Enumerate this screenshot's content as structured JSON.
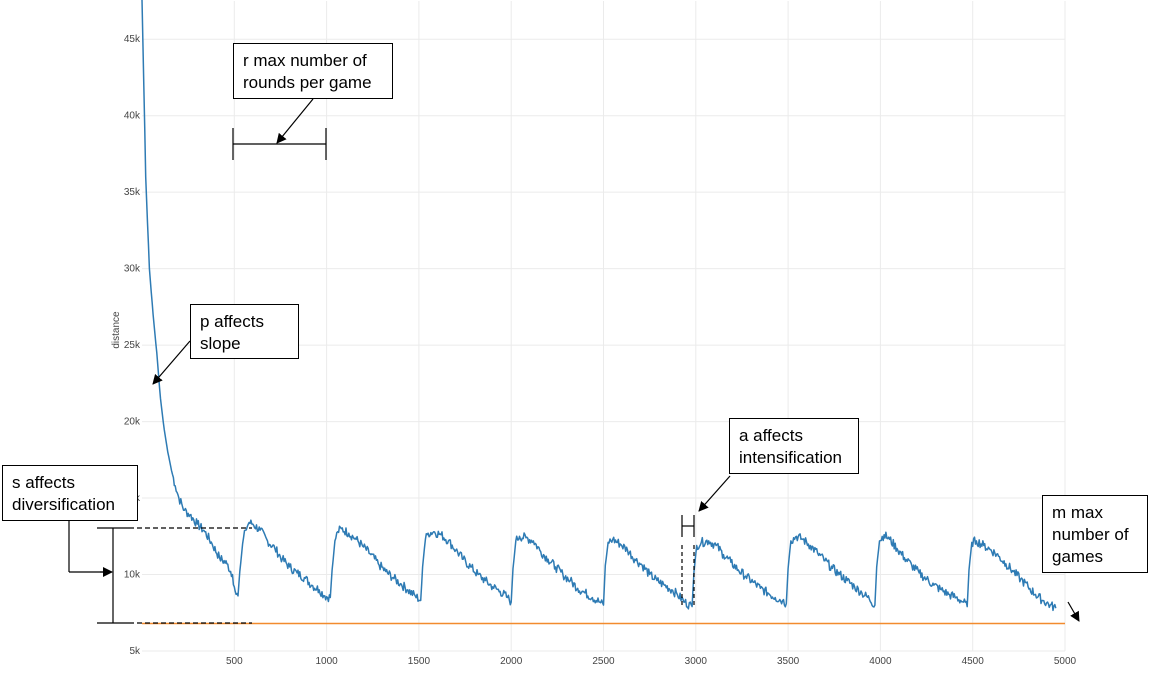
{
  "chart_data": {
    "type": "line",
    "title": "",
    "xlabel": "",
    "ylabel": "distance",
    "xlim": [
      0,
      5000
    ],
    "ylim": [
      5000,
      47500
    ],
    "grid": true,
    "x_ticks": [
      {
        "value": 500,
        "label": "500"
      },
      {
        "value": 1000,
        "label": "1000"
      },
      {
        "value": 1500,
        "label": "1500"
      },
      {
        "value": 2000,
        "label": "2000"
      },
      {
        "value": 2500,
        "label": "2500"
      },
      {
        "value": 3000,
        "label": "3000"
      },
      {
        "value": 3500,
        "label": "3500"
      },
      {
        "value": 4000,
        "label": "4000"
      },
      {
        "value": 4500,
        "label": "4500"
      },
      {
        "value": 5000,
        "label": "5000"
      }
    ],
    "y_ticks": [
      {
        "value": 5000,
        "label": "5k"
      },
      {
        "value": 10000,
        "label": "10k"
      },
      {
        "value": 15000,
        "label": "15k"
      },
      {
        "value": 20000,
        "label": "20k"
      },
      {
        "value": 25000,
        "label": "25k"
      },
      {
        "value": 30000,
        "label": "30k"
      },
      {
        "value": 35000,
        "label": "35k"
      },
      {
        "value": 40000,
        "label": "40k"
      },
      {
        "value": 45000,
        "label": "45k"
      }
    ],
    "series": [
      {
        "color": "#2e7bb4",
        "points": [
          [
            0,
            47600
          ],
          [
            10,
            42000
          ],
          [
            20,
            36000
          ],
          [
            40,
            30000
          ],
          [
            60,
            27000
          ],
          [
            80,
            24500
          ],
          [
            100,
            21500
          ],
          [
            120,
            19500
          ],
          [
            140,
            18000
          ],
          [
            160,
            16800
          ],
          [
            180,
            15800
          ],
          [
            200,
            15000
          ],
          [
            230,
            14200
          ],
          [
            260,
            13900
          ],
          [
            300,
            13300
          ],
          [
            340,
            12800
          ],
          [
            380,
            12000
          ],
          [
            420,
            11100
          ],
          [
            460,
            10700
          ],
          [
            490,
            10000
          ],
          [
            500,
            9200
          ],
          [
            510,
            8700
          ],
          [
            520,
            8600
          ],
          [
            530,
            10200
          ],
          [
            545,
            12000
          ],
          [
            560,
            12900
          ],
          [
            580,
            13400
          ],
          [
            600,
            13300
          ],
          [
            640,
            12900
          ],
          [
            680,
            12200
          ],
          [
            720,
            11700
          ],
          [
            760,
            11000
          ],
          [
            800,
            10500
          ],
          [
            840,
            10100
          ],
          [
            880,
            9800
          ],
          [
            920,
            9300
          ],
          [
            960,
            9000
          ],
          [
            990,
            8600
          ],
          [
            1020,
            8500
          ],
          [
            1030,
            10300
          ],
          [
            1045,
            12200
          ],
          [
            1060,
            12800
          ],
          [
            1080,
            13000
          ],
          [
            1120,
            12700
          ],
          [
            1160,
            12300
          ],
          [
            1200,
            11800
          ],
          [
            1240,
            11300
          ],
          [
            1280,
            10700
          ],
          [
            1320,
            10200
          ],
          [
            1360,
            9800
          ],
          [
            1400,
            9400
          ],
          [
            1440,
            9000
          ],
          [
            1480,
            8600
          ],
          [
            1510,
            8300
          ],
          [
            1520,
            10500
          ],
          [
            1535,
            12300
          ],
          [
            1550,
            12700
          ],
          [
            1580,
            12800
          ],
          [
            1620,
            12600
          ],
          [
            1660,
            12200
          ],
          [
            1700,
            11600
          ],
          [
            1740,
            11000
          ],
          [
            1780,
            10500
          ],
          [
            1820,
            10000
          ],
          [
            1860,
            9600
          ],
          [
            1900,
            9200
          ],
          [
            1940,
            8900
          ],
          [
            1980,
            8500
          ],
          [
            2000,
            8200
          ],
          [
            2010,
            10400
          ],
          [
            2025,
            12200
          ],
          [
            2045,
            12500
          ],
          [
            2080,
            12400
          ],
          [
            2120,
            12200
          ],
          [
            2160,
            11500
          ],
          [
            2200,
            11000
          ],
          [
            2240,
            10500
          ],
          [
            2280,
            10000
          ],
          [
            2320,
            9600
          ],
          [
            2360,
            9100
          ],
          [
            2400,
            8800
          ],
          [
            2440,
            8500
          ],
          [
            2480,
            8200
          ],
          [
            2500,
            8000
          ],
          [
            2510,
            10600
          ],
          [
            2525,
            12100
          ],
          [
            2550,
            12300
          ],
          [
            2590,
            12000
          ],
          [
            2630,
            11600
          ],
          [
            2670,
            11000
          ],
          [
            2710,
            10600
          ],
          [
            2750,
            10000
          ],
          [
            2790,
            9600
          ],
          [
            2830,
            9300
          ],
          [
            2870,
            9000
          ],
          [
            2900,
            8700
          ],
          [
            2940,
            8200
          ],
          [
            2980,
            7900
          ],
          [
            2990,
            10200
          ],
          [
            3005,
            11900
          ],
          [
            3030,
            12100
          ],
          [
            3070,
            12200
          ],
          [
            3110,
            11900
          ],
          [
            3150,
            11300
          ],
          [
            3190,
            10800
          ],
          [
            3230,
            10300
          ],
          [
            3270,
            9900
          ],
          [
            3310,
            9500
          ],
          [
            3350,
            9100
          ],
          [
            3390,
            8800
          ],
          [
            3430,
            8500
          ],
          [
            3470,
            8300
          ],
          [
            3490,
            8100
          ],
          [
            3500,
            10400
          ],
          [
            3515,
            12200
          ],
          [
            3545,
            12500
          ],
          [
            3580,
            12300
          ],
          [
            3620,
            11900
          ],
          [
            3660,
            11400
          ],
          [
            3700,
            10900
          ],
          [
            3740,
            10400
          ],
          [
            3780,
            10000
          ],
          [
            3820,
            9600
          ],
          [
            3860,
            9200
          ],
          [
            3900,
            8800
          ],
          [
            3940,
            8400
          ],
          [
            3970,
            8000
          ],
          [
            3980,
            10500
          ],
          [
            3995,
            12200
          ],
          [
            4020,
            12600
          ],
          [
            4050,
            12300
          ],
          [
            4090,
            11700
          ],
          [
            4130,
            11100
          ],
          [
            4170,
            10600
          ],
          [
            4210,
            10100
          ],
          [
            4250,
            9700
          ],
          [
            4290,
            9300
          ],
          [
            4330,
            9000
          ],
          [
            4370,
            8700
          ],
          [
            4410,
            8500
          ],
          [
            4450,
            8200
          ],
          [
            4470,
            7900
          ],
          [
            4480,
            10300
          ],
          [
            4495,
            12100
          ],
          [
            4520,
            12200
          ],
          [
            4560,
            11900
          ],
          [
            4600,
            11600
          ],
          [
            4640,
            11200
          ],
          [
            4680,
            10700
          ],
          [
            4720,
            10200
          ],
          [
            4760,
            9700
          ],
          [
            4800,
            9200
          ],
          [
            4840,
            8700
          ],
          [
            4880,
            8300
          ],
          [
            4920,
            8000
          ],
          [
            4950,
            7800
          ]
        ]
      },
      {
        "color": "#f28b2e",
        "points": [
          [
            0,
            6800
          ],
          [
            5000,
            6800
          ]
        ]
      }
    ]
  },
  "annotations": {
    "r": "r max number of\nrounds per game",
    "p": "p affects\nslope",
    "a": "a affects\nintensification",
    "s": "s affects\ndiversification",
    "m": "m max\nnumber of\ngames"
  }
}
